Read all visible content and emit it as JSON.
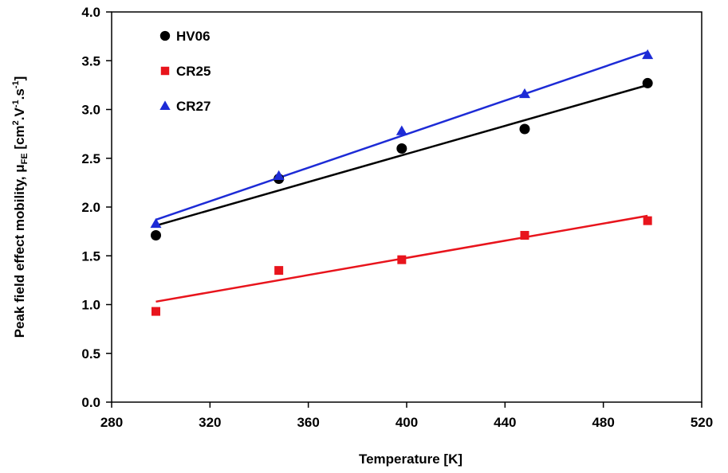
{
  "chart_data": {
    "type": "scatter",
    "xlabel": "Temperature [K]",
    "ylabel": {
      "main": "Peak field effect mobility, μ",
      "sub": "FE",
      "unit_open": "[cm",
      "sup1": "2",
      "dot1": ".V",
      "sup2": "-1",
      "dot2": ".s",
      "sup3": "-1",
      "close": "]"
    },
    "xlim": [
      280,
      520
    ],
    "ylim": [
      0.0,
      4.0
    ],
    "x_ticks": [
      "280",
      "320",
      "360",
      "400",
      "440",
      "480",
      "520"
    ],
    "y_ticks": [
      "0.0",
      "0.5",
      "1.0",
      "1.5",
      "2.0",
      "2.5",
      "3.0",
      "3.5",
      "4.0"
    ],
    "grid": false,
    "legend_position": "top-left",
    "series": [
      {
        "name": "HV06",
        "marker": "circle",
        "color": "#000000",
        "x": [
          298,
          348,
          398,
          448,
          498
        ],
        "y": [
          1.71,
          2.29,
          2.6,
          2.8,
          3.27
        ],
        "fit": {
          "x": [
            298,
            498
          ],
          "y": [
            1.81,
            3.25
          ]
        }
      },
      {
        "name": "CR25",
        "marker": "square",
        "color": "#e8141c",
        "x": [
          298,
          348,
          398,
          448,
          498
        ],
        "y": [
          0.93,
          1.35,
          1.46,
          1.71,
          1.86
        ],
        "fit": {
          "x": [
            298,
            498
          ],
          "y": [
            1.03,
            1.91
          ]
        }
      },
      {
        "name": "CR27",
        "marker": "triangle",
        "color": "#1d2bd6",
        "x": [
          298,
          348,
          398,
          448,
          498
        ],
        "y": [
          1.83,
          2.32,
          2.78,
          3.16,
          3.56
        ],
        "fit": {
          "x": [
            298,
            498
          ],
          "y": [
            1.87,
            3.59
          ]
        }
      }
    ]
  }
}
